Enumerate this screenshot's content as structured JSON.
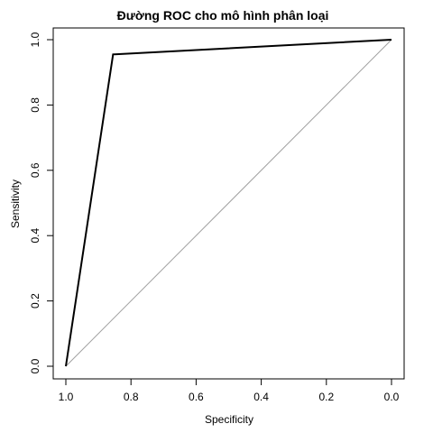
{
  "chart_data": {
    "type": "line",
    "title": "Đường ROC cho mô hình phân loại",
    "xlabel": "Specificity",
    "ylabel": "Sensitivity",
    "xlim": [
      1.0,
      0.0
    ],
    "ylim": [
      0.0,
      1.0
    ],
    "x_reversed": true,
    "x_ticks": [
      1.0,
      0.8,
      0.6,
      0.4,
      0.2,
      0.0
    ],
    "x_tick_labels": [
      "1.0",
      "0.8",
      "0.6",
      "0.4",
      "0.2",
      "0.0"
    ],
    "y_ticks": [
      0.0,
      0.2,
      0.4,
      0.6,
      0.8,
      1.0
    ],
    "y_tick_labels": [
      "0.0",
      "0.2",
      "0.4",
      "0.6",
      "0.8",
      "1.0"
    ],
    "grid": false,
    "legend": "none",
    "series": [
      {
        "x": [
          1.0,
          0.855,
          0.0
        ],
        "y": [
          0.0,
          0.955,
          1.0
        ],
        "color": "#000000"
      }
    ],
    "reference_line": {
      "x": [
        1.0,
        0.0
      ],
      "y": [
        0.0,
        1.0
      ],
      "color": "#a0a0a0"
    }
  }
}
